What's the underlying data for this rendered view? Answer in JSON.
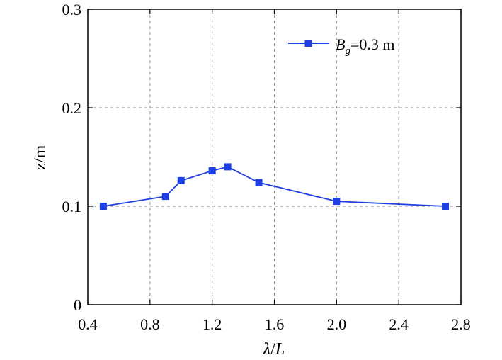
{
  "chart_data": {
    "type": "line",
    "title": "",
    "xlabel": {
      "var": "λ",
      "sep": "/",
      "unit": "L"
    },
    "ylabel": {
      "var": "z",
      "sep": "/",
      "unit": "m"
    },
    "xlim": [
      0.4,
      2.8
    ],
    "ylim": [
      0,
      0.3
    ],
    "xticks": [
      "0.4",
      "0.8",
      "1.2",
      "1.6",
      "2.0",
      "2.4",
      "2.8"
    ],
    "yticks": [
      "0",
      "0.1",
      "0.2",
      "0.3"
    ],
    "grid": true,
    "legend_position": "top-right",
    "series": [
      {
        "legend": {
          "var": "B",
          "sub": "g",
          "rest": "=0.3 m"
        },
        "color": "#1f3fe6",
        "marker": "square",
        "x": [
          0.5,
          0.9,
          1.0,
          1.2,
          1.3,
          1.5,
          2.0,
          2.7
        ],
        "y": [
          0.1,
          0.11,
          0.126,
          0.136,
          0.14,
          0.124,
          0.105,
          0.1
        ]
      }
    ]
  }
}
